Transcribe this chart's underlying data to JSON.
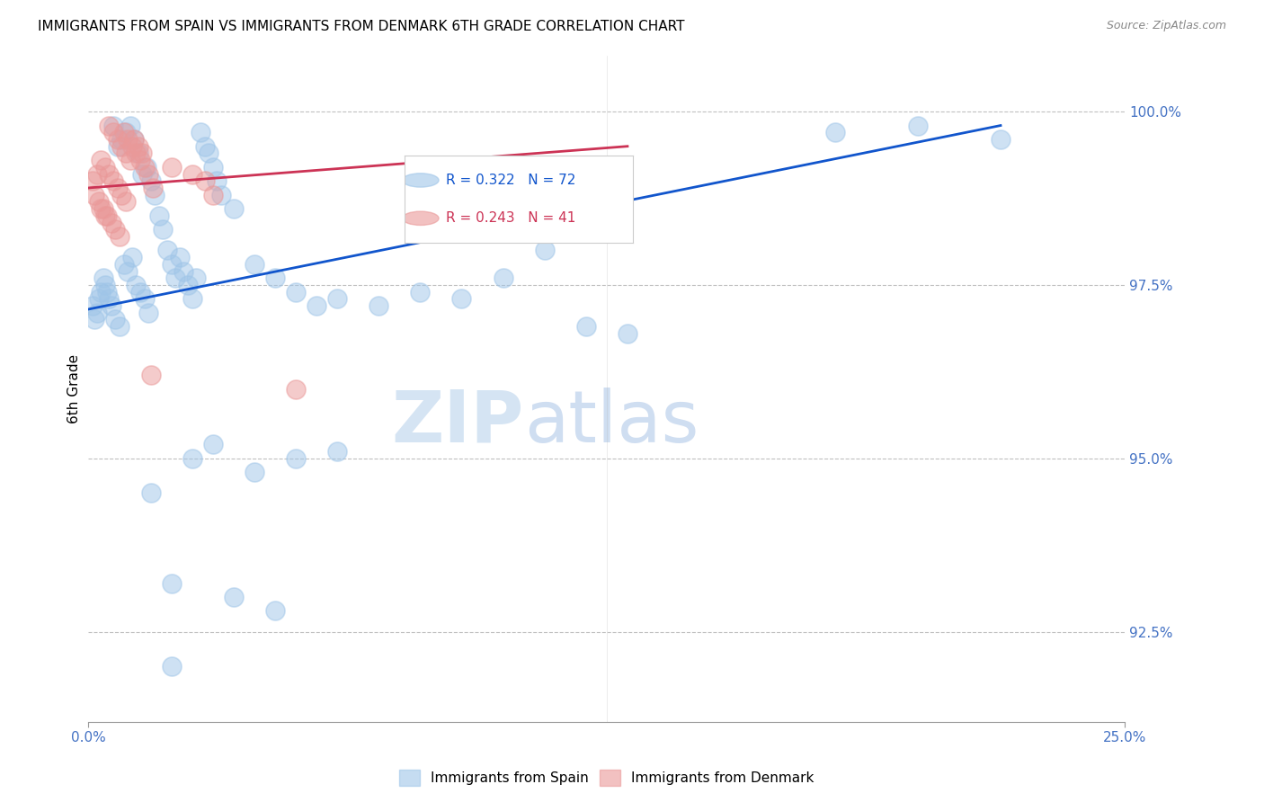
{
  "title": "IMMIGRANTS FROM SPAIN VS IMMIGRANTS FROM DENMARK 6TH GRADE CORRELATION CHART",
  "source": "Source: ZipAtlas.com",
  "ylabel": "6th Grade",
  "ylabel_right_ticks": [
    100.0,
    97.5,
    95.0,
    92.5
  ],
  "ylabel_right_labels": [
    "100.0%",
    "97.5%",
    "95.0%",
    "92.5%"
  ],
  "xmin": 0.0,
  "xmax": 25.0,
  "ymin": 91.2,
  "ymax": 100.8,
  "legend_blue_r": "R = 0.322",
  "legend_blue_n": "N = 72",
  "legend_pink_r": "R = 0.243",
  "legend_pink_n": "N = 41",
  "blue_color": "#9fc5e8",
  "pink_color": "#ea9999",
  "blue_line_color": "#1155cc",
  "pink_line_color": "#cc3355",
  "blue_scatter_x": [
    0.3,
    0.4,
    0.5,
    0.6,
    0.7,
    0.8,
    0.9,
    1.0,
    1.1,
    1.2,
    1.3,
    1.4,
    1.5,
    1.6,
    1.7,
    1.8,
    1.9,
    2.0,
    2.1,
    2.2,
    2.3,
    2.4,
    2.5,
    2.6,
    2.7,
    2.8,
    2.9,
    3.0,
    3.1,
    3.2,
    0.1,
    0.2,
    0.15,
    0.25,
    0.35,
    0.45,
    0.55,
    0.65,
    0.75,
    0.85,
    0.95,
    1.05,
    1.15,
    1.25,
    1.35,
    1.45,
    3.5,
    4.0,
    4.5,
    5.0,
    5.5,
    6.0,
    7.0,
    8.0,
    9.0,
    10.0,
    11.0,
    12.0,
    13.0,
    2.5,
    3.0,
    4.0,
    5.0,
    2.0,
    3.5,
    4.5,
    6.0,
    1.5,
    20.0,
    18.0,
    22.0,
    2.0
  ],
  "blue_scatter_y": [
    97.4,
    97.5,
    97.3,
    99.8,
    99.5,
    99.6,
    99.7,
    99.8,
    99.6,
    99.4,
    99.1,
    99.2,
    99.0,
    98.8,
    98.5,
    98.3,
    98.0,
    97.8,
    97.6,
    97.9,
    97.7,
    97.5,
    97.3,
    97.6,
    99.7,
    99.5,
    99.4,
    99.2,
    99.0,
    98.8,
    97.2,
    97.1,
    97.0,
    97.3,
    97.6,
    97.4,
    97.2,
    97.0,
    96.9,
    97.8,
    97.7,
    97.9,
    97.5,
    97.4,
    97.3,
    97.1,
    98.6,
    97.8,
    97.6,
    97.4,
    97.2,
    97.3,
    97.2,
    97.4,
    97.3,
    97.6,
    98.0,
    96.9,
    96.8,
    95.0,
    95.2,
    94.8,
    95.0,
    93.2,
    93.0,
    92.8,
    95.1,
    94.5,
    99.8,
    99.7,
    99.6,
    92.0
  ],
  "pink_scatter_x": [
    0.5,
    0.6,
    0.7,
    0.8,
    0.9,
    1.0,
    1.1,
    1.2,
    1.3,
    0.3,
    0.4,
    0.2,
    0.1,
    0.15,
    0.25,
    0.35,
    0.45,
    0.55,
    0.65,
    0.75,
    0.85,
    0.95,
    1.05,
    1.15,
    1.25,
    1.35,
    1.45,
    1.55,
    0.3,
    0.4,
    2.0,
    2.5,
    2.8,
    3.0,
    0.5,
    0.6,
    0.7,
    0.8,
    0.9,
    1.5,
    5.0
  ],
  "pink_scatter_y": [
    99.8,
    99.7,
    99.6,
    99.5,
    99.4,
    99.3,
    99.6,
    99.5,
    99.4,
    99.3,
    99.2,
    99.1,
    99.0,
    98.8,
    98.7,
    98.6,
    98.5,
    98.4,
    98.3,
    98.2,
    99.7,
    99.6,
    99.5,
    99.4,
    99.3,
    99.2,
    99.1,
    98.9,
    98.6,
    98.5,
    99.2,
    99.1,
    99.0,
    98.8,
    99.1,
    99.0,
    98.9,
    98.8,
    98.7,
    96.2,
    96.0
  ],
  "blue_trend_x": [
    0.0,
    22.0
  ],
  "blue_trend_y": [
    97.15,
    99.8
  ],
  "pink_trend_x": [
    0.0,
    13.0
  ],
  "pink_trend_y": [
    98.9,
    99.5
  ],
  "watermark_zip": "ZIP",
  "watermark_atlas": "atlas",
  "title_fontsize": 11,
  "source_fontsize": 9,
  "axis_label_color": "#4472c4",
  "grid_color": "#c0c0c0",
  "xlabel_labels": [
    "0.0%",
    "25.0%"
  ],
  "bottom_legend_spain": "Immigrants from Spain",
  "bottom_legend_denmark": "Immigrants from Denmark"
}
